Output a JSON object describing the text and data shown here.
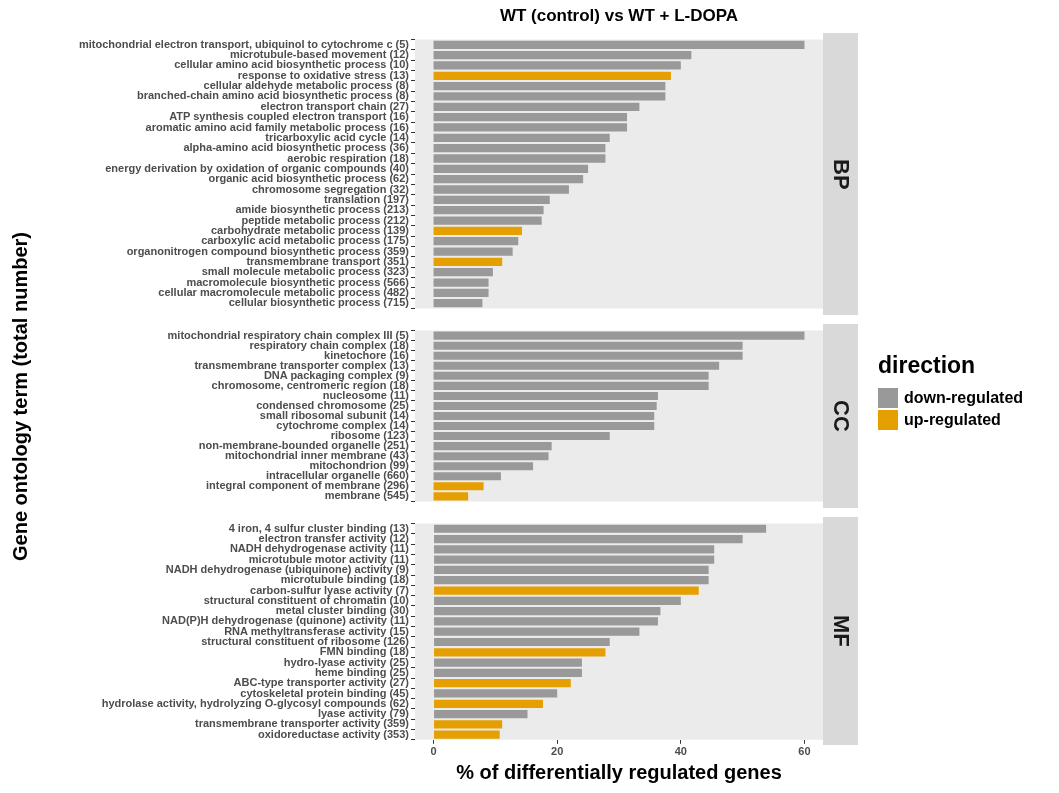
{
  "chart_data": [
    {
      "type": "bar",
      "orientation": "horizontal",
      "stacked": true,
      "title": "WT (control) vs WT + L-DOPA",
      "subtitle": "BP",
      "legend": "right",
      "legend_title": "direction",
      "tick_labels": "y",
      "xlim": [
        -3,
        63
      ],
      "xticks": [
        0,
        20,
        40,
        60
      ],
      "categories": [
        "mitochondrial electron transport, ubiquinol to cytochrome c (5)",
        "microtubule-based movement (12)",
        "cellular amino acid biosynthetic process (10)",
        "response to oxidative stress (13)",
        "cellular aldehyde metabolic process (8)",
        "branched-chain amino acid biosynthetic process (8)",
        "electron transport chain (27)",
        "ATP synthesis coupled electron transport (16)",
        "aromatic amino acid family metabolic process (16)",
        "tricarboxylic acid cycle (14)",
        "alpha-amino acid biosynthetic process (36)",
        "aerobic respiration (18)",
        "energy derivation by oxidation of organic compounds (40)",
        "organic acid biosynthetic process (62)",
        "chromosome segregation (32)",
        "translation (197)",
        "amide biosynthetic process (213)",
        "peptide metabolic process (212)",
        "carbohydrate metabolic process (139)",
        "carboxylic acid metabolic process (175)",
        "organonitrogen compound biosynthetic process (359)",
        "transmembrane transport (351)",
        "small molecule metabolic process (323)",
        "macromolecule biosynthetic process (566)",
        "cellular macromolecule metabolic process (482)",
        "cellular biosynthetic process (715)"
      ],
      "series": [
        {
          "name": "down-regulated",
          "color": "#999999",
          "values": [
            60,
            41.7,
            40,
            null,
            37.5,
            37.5,
            33.3,
            31.3,
            31.3,
            28.5,
            27.8,
            27.8,
            25,
            24.2,
            21.9,
            18.8,
            17.8,
            17.5,
            null,
            13.7,
            12.8,
            null,
            9.6,
            8.9,
            8.9,
            7.9
          ]
        },
        {
          "name": "up-regulated",
          "color": "#e69f00",
          "values": [
            null,
            null,
            null,
            38.4,
            null,
            null,
            null,
            null,
            null,
            null,
            null,
            null,
            null,
            null,
            null,
            null,
            null,
            null,
            14.3,
            null,
            null,
            11.1,
            null,
            null,
            null,
            null
          ]
        }
      ]
    },
    {
      "type": "bar",
      "orientation": "horizontal",
      "stacked": true,
      "subtitle": "CC",
      "ylabel": "Gene ontology term (total number)",
      "tick_labels": "y",
      "xlim": [
        -3,
        63
      ],
      "xticks": [
        0,
        20,
        40,
        60
      ],
      "categories": [
        "mitochondrial respiratory chain complex III (5)",
        "respiratory chain complex (18)",
        "kinetochore (16)",
        "transmembrane transporter complex (13)",
        "DNA packaging complex (9)",
        "chromosome, centromeric region (18)",
        "nucleosome (11)",
        "condensed chromosome (25)",
        "small ribosomal subunit (14)",
        "cytochrome complex (14)",
        "ribosome (123)",
        "non-membrane-bounded organelle (251)",
        "mitochondrial inner membrane (43)",
        "mitochondrion (99)",
        "intracellular organelle (660)",
        "integral component of membrane (296)",
        "membrane (545)"
      ],
      "series": [
        {
          "color": "#999999",
          "values": [
            60,
            50,
            50,
            46.2,
            44.5,
            44.5,
            36.3,
            36.1,
            35.7,
            35.7,
            28.5,
            19.1,
            18.6,
            16.1,
            10.9,
            null,
            null
          ]
        },
        {
          "color": "#e69f00",
          "values": [
            null,
            null,
            null,
            null,
            null,
            null,
            null,
            null,
            null,
            null,
            null,
            null,
            null,
            null,
            null,
            8.1,
            5.6
          ]
        }
      ]
    },
    {
      "type": "bar",
      "orientation": "horizontal",
      "stacked": true,
      "subtitle": "MF",
      "xlabel": "% of differentially regulated genes",
      "xlim": [
        -3,
        63
      ],
      "xticks": [
        0,
        20,
        40,
        60
      ],
      "categories": [
        "4 iron, 4 sulfur cluster binding (13)",
        "electron transfer activity (12)",
        "NADH dehydrogenase activity (11)",
        "microtubule motor activity (11)",
        "NADH dehydrogenase (ubiquinone) activity (9)",
        "microtubule binding (18)",
        "carbon-sulfur lyase activity (7)",
        "structural constituent of chromatin (10)",
        "metal cluster binding (30)",
        "NAD(P)H dehydrogenase (quinone) activity (11)",
        "RNA methyltransferase activity (15)",
        "structural constituent of ribosome (126)",
        "FMN binding (18)",
        "hydro-lyase activity (25)",
        "heme binding (25)",
        "ABC-type transporter activity (27)",
        "cytoskeletal protein binding (45)",
        "hydrolase activity, hydrolyzing O-glycosyl compounds (62)",
        "lyase activity (79)",
        "transmembrane transporter activity (359)",
        "oxidoreductase activity (353)"
      ],
      "series": [
        {
          "color": "#999999",
          "values": [
            53.8,
            50,
            45.4,
            45.4,
            44.5,
            44.5,
            null,
            40,
            36.7,
            36.3,
            33.3,
            28.5,
            null,
            24,
            24,
            null,
            20,
            null,
            15.2,
            null,
            null
          ]
        },
        {
          "color": "#e69f00",
          "values": [
            null,
            null,
            null,
            null,
            null,
            null,
            42.9,
            null,
            null,
            null,
            null,
            null,
            27.8,
            null,
            null,
            22.2,
            null,
            17.7,
            null,
            11.1,
            10.7
          ]
        }
      ]
    }
  ]
}
